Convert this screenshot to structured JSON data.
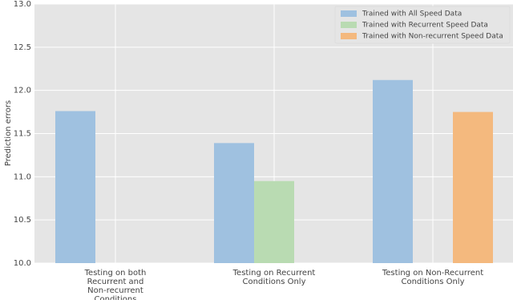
{
  "chart_data": {
    "type": "bar",
    "y_label": "Prediction errors",
    "categories": [
      "Testing on both\nRecurrent and\nNon-recurrent\nConditions",
      "Testing on Recurrent\nConditions Only",
      "Testing on Non-Recurrent\nConditions Only"
    ],
    "series": [
      {
        "name": "Trained with All Speed Data",
        "color": "#9fc1e0",
        "values": [
          11.76,
          11.39,
          12.12
        ]
      },
      {
        "name": "Trained with Recurrent Speed Data",
        "color": "#b9dbb2",
        "values": [
          null,
          10.95,
          null
        ]
      },
      {
        "name": "Trained with Non-recurrent Speed Data",
        "color": "#f4b97e",
        "values": [
          null,
          null,
          11.75
        ]
      }
    ],
    "ylim": [
      10,
      13
    ],
    "yticks": [
      {
        "value": 10,
        "label": "10.0"
      },
      {
        "value": 10.5,
        "label": "10.5"
      },
      {
        "value": 11,
        "label": "11.0"
      },
      {
        "value": 11.5,
        "label": "11.5"
      },
      {
        "value": 12,
        "label": "12.0"
      },
      {
        "value": 12.5,
        "label": "12.5"
      },
      {
        "value": 13,
        "label": "13.0"
      }
    ],
    "grid": true,
    "legend": "upper right"
  }
}
